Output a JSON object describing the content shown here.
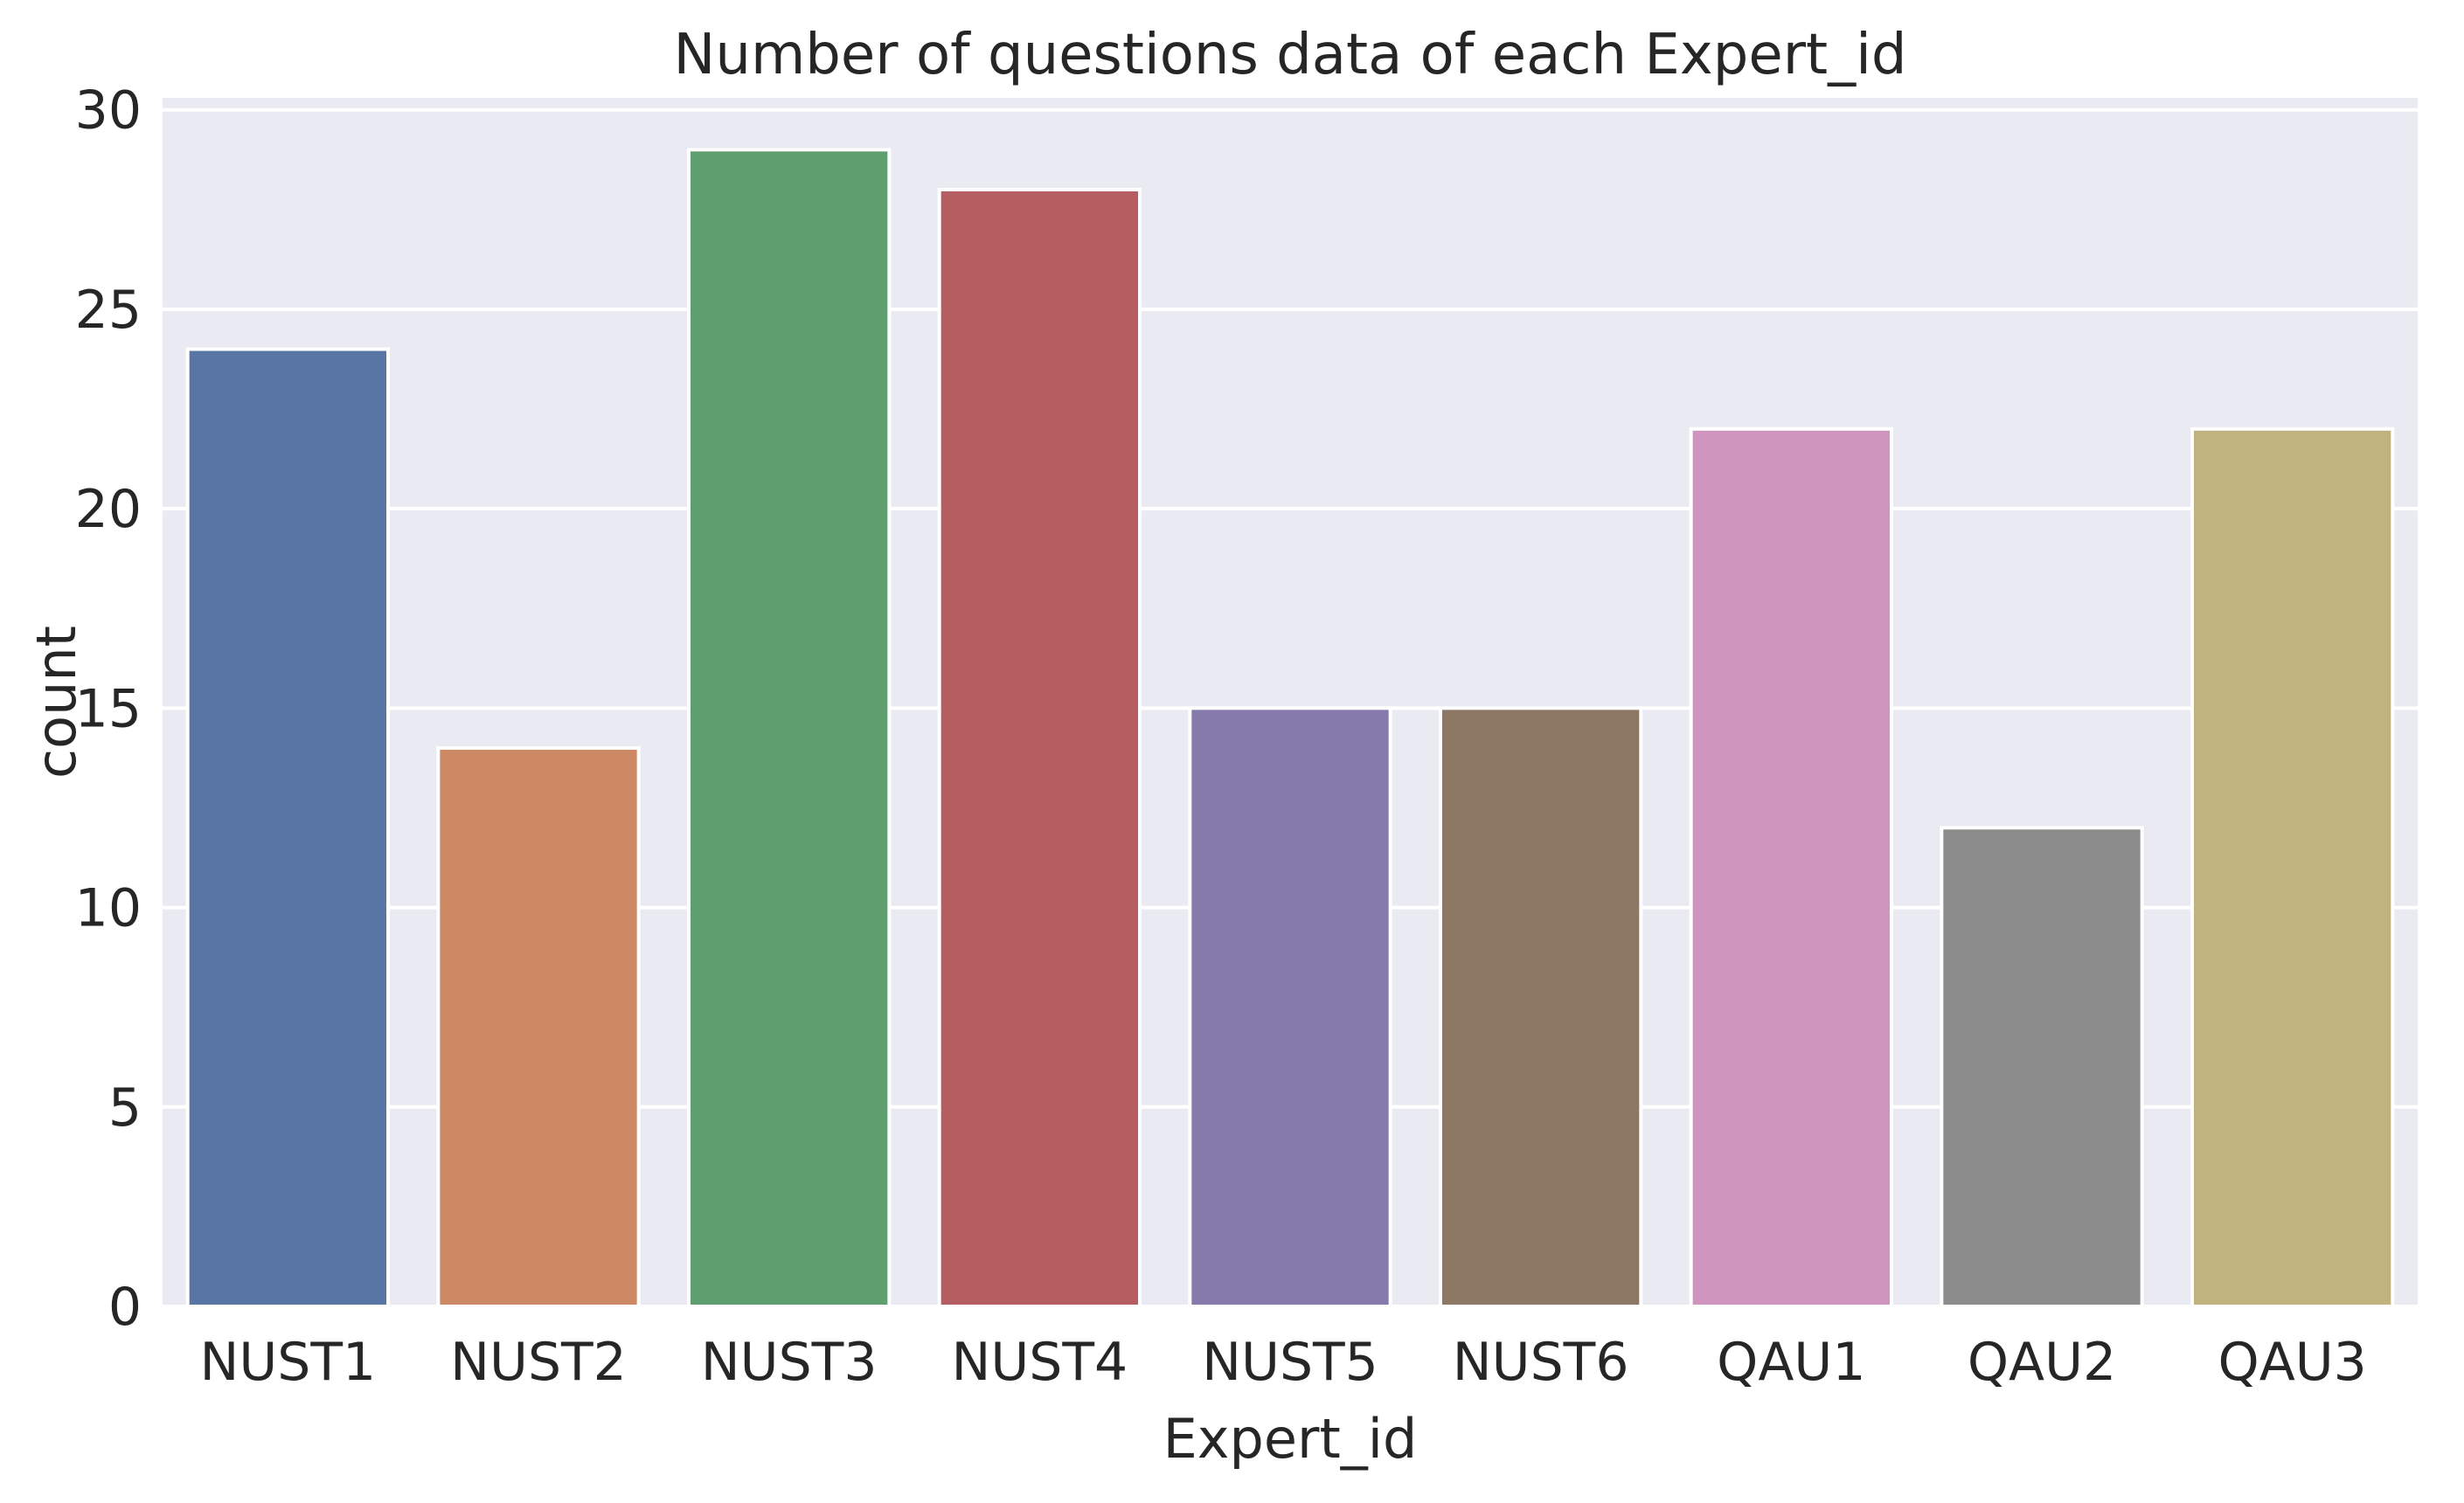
{
  "chart_data": {
    "type": "bar",
    "title": "Number of questions data of each Expert_id",
    "xlabel": "Expert_id",
    "ylabel": "count",
    "categories": [
      "NUST1",
      "NUST2",
      "NUST3",
      "NUST4",
      "NUST5",
      "NUST6",
      "QAU1",
      "QAU2",
      "QAU3"
    ],
    "values": [
      24,
      14,
      29,
      28,
      15,
      15,
      22,
      12,
      22
    ],
    "colors": [
      "#5875a4",
      "#cc8963",
      "#5f9e6e",
      "#b55d60",
      "#857aab",
      "#8d7866",
      "#d095bf",
      "#8c8c8c",
      "#c1b37f"
    ],
    "ylim": [
      0,
      30.3
    ],
    "yticks": [
      0,
      5,
      10,
      15,
      20,
      25,
      30
    ],
    "grid": true,
    "background": "#eaeaf2",
    "grid_color": "#ffffff"
  }
}
